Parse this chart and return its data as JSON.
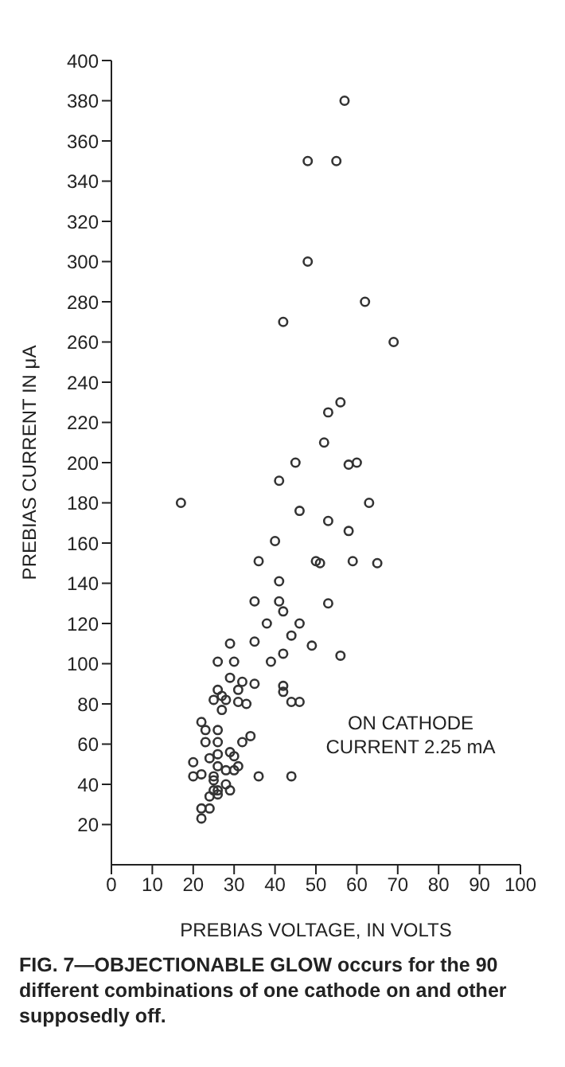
{
  "chart_data": {
    "type": "scatter",
    "xlabel": "PREBIAS VOLTAGE, IN VOLTS",
    "ylabel": "PREBIAS CURRENT IN μA",
    "annotations": [
      "ON CATHODE\nCURRENT 2.25 mA",
      "FIG. 7—OBJECTIONABLE GLOW occurs for the 90 different combinations of one cathode on and other supposedly off."
    ],
    "series": [
      {
        "color": "#333333",
        "x": [
          57,
          48,
          55,
          48,
          62,
          42,
          69,
          56,
          53,
          52,
          45,
          58,
          60,
          41,
          17,
          63,
          46,
          53,
          58,
          40,
          36,
          50,
          51,
          59,
          65,
          41,
          35,
          41,
          53,
          42,
          38,
          46,
          44,
          35,
          29,
          49,
          42,
          56,
          26,
          30,
          39,
          29,
          32,
          35,
          31,
          26,
          42,
          42,
          27,
          25,
          28,
          27,
          31,
          33,
          44,
          46,
          22,
          23,
          26,
          34,
          23,
          26,
          32,
          29,
          24,
          26,
          30,
          20,
          26,
          28,
          30,
          31,
          20,
          22,
          25,
          25,
          36,
          44,
          28,
          29,
          25,
          26,
          24,
          26,
          22,
          24,
          22
        ],
        "values": [
          380,
          350,
          350,
          300,
          280,
          270,
          260,
          230,
          225,
          210,
          200,
          199,
          200,
          191,
          180,
          180,
          176,
          171,
          166,
          161,
          151,
          151,
          150,
          151,
          150,
          141,
          131,
          131,
          130,
          126,
          120,
          120,
          114,
          111,
          110,
          109,
          105,
          104,
          101,
          101,
          101,
          93,
          91,
          90,
          87,
          87,
          89,
          86,
          84,
          82,
          82,
          77,
          81,
          80,
          81,
          81,
          71,
          67,
          67,
          64,
          61,
          61,
          61,
          56,
          53,
          55,
          54,
          51,
          49,
          47,
          47,
          49,
          44,
          45,
          44,
          42,
          44,
          44,
          40,
          37,
          37,
          37,
          34,
          35,
          28,
          28,
          23
        ]
      }
    ],
    "marker": "circle",
    "xlim": [
      0,
      100
    ],
    "ylim": [
      0,
      400
    ],
    "xticks": [
      0,
      10,
      20,
      30,
      40,
      50,
      60,
      70,
      80,
      90,
      100
    ],
    "yticks": [
      20,
      40,
      60,
      80,
      100,
      120,
      140,
      160,
      180,
      200,
      220,
      240,
      260,
      280,
      300,
      320,
      340,
      360,
      380,
      400
    ],
    "grid": false
  }
}
